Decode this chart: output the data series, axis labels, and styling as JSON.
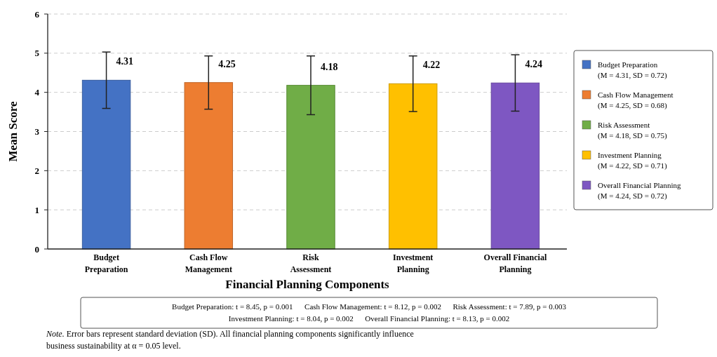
{
  "chart_data": {
    "type": "bar",
    "ylabel": "Mean Score",
    "xlabel": "Financial Planning Components",
    "categories": [
      "Budget Preparation",
      "Cash Flow Management",
      "Risk Assessment",
      "Investment Planning",
      "Overall Financial Planning"
    ],
    "series": [
      {
        "name": "Budget Preparation (M = 4.31, SD = 0.72)",
        "color": "#4472c4",
        "values": [
          4.31,
          null,
          null,
          null,
          null
        ],
        "errors": [
          0.72,
          null,
          null,
          null,
          null
        ]
      },
      {
        "name": "Cash Flow Management (M = 4.25, SD = 0.68)",
        "color": "#ed7d31",
        "values": [
          null,
          4.25,
          null,
          null,
          null
        ],
        "errors": [
          null,
          0.68,
          null,
          null,
          null
        ]
      },
      {
        "name": "Risk Assessment (M = 4.18, SD = 0.75)",
        "color": "#70ad47",
        "values": [
          null,
          null,
          4.18,
          null,
          null
        ],
        "errors": [
          null,
          null,
          0.75,
          null,
          null
        ]
      },
      {
        "name": "Investment Planning (M = 4.22, SD = 0.71)",
        "color": "#ffc000",
        "values": [
          null,
          null,
          null,
          4.22,
          null
        ],
        "errors": [
          null,
          null,
          null,
          0.71,
          null
        ]
      },
      {
        "name": "Overall Financial Planning (M = 4.24, SD = 0.72)",
        "color": "#7e57c2",
        "values": [
          null,
          null,
          null,
          null,
          4.24
        ],
        "errors": [
          null,
          null,
          null,
          null,
          0.72
        ]
      }
    ],
    "ylim": [
      0,
      6
    ],
    "yticks": [
      0,
      1,
      2,
      3,
      4,
      5,
      6
    ],
    "grid": "y",
    "legend": "right",
    "data_labels": true,
    "annotations": [
      "Budget Preparation: t = 8.45, p = 0.001      Cash Flow Management: t = 8.12, p = 0.002      Risk Assessment: t = 7.89, p = 0.003",
      "Investment Planning: t = 8.04, p = 0.002      Overall Financial Planning: t = 8.13, p = 0.002",
      "Note. Error bars represent standard deviation (SD). All financial planning components significantly influence business sustainability at α = 0.05 level."
    ]
  }
}
